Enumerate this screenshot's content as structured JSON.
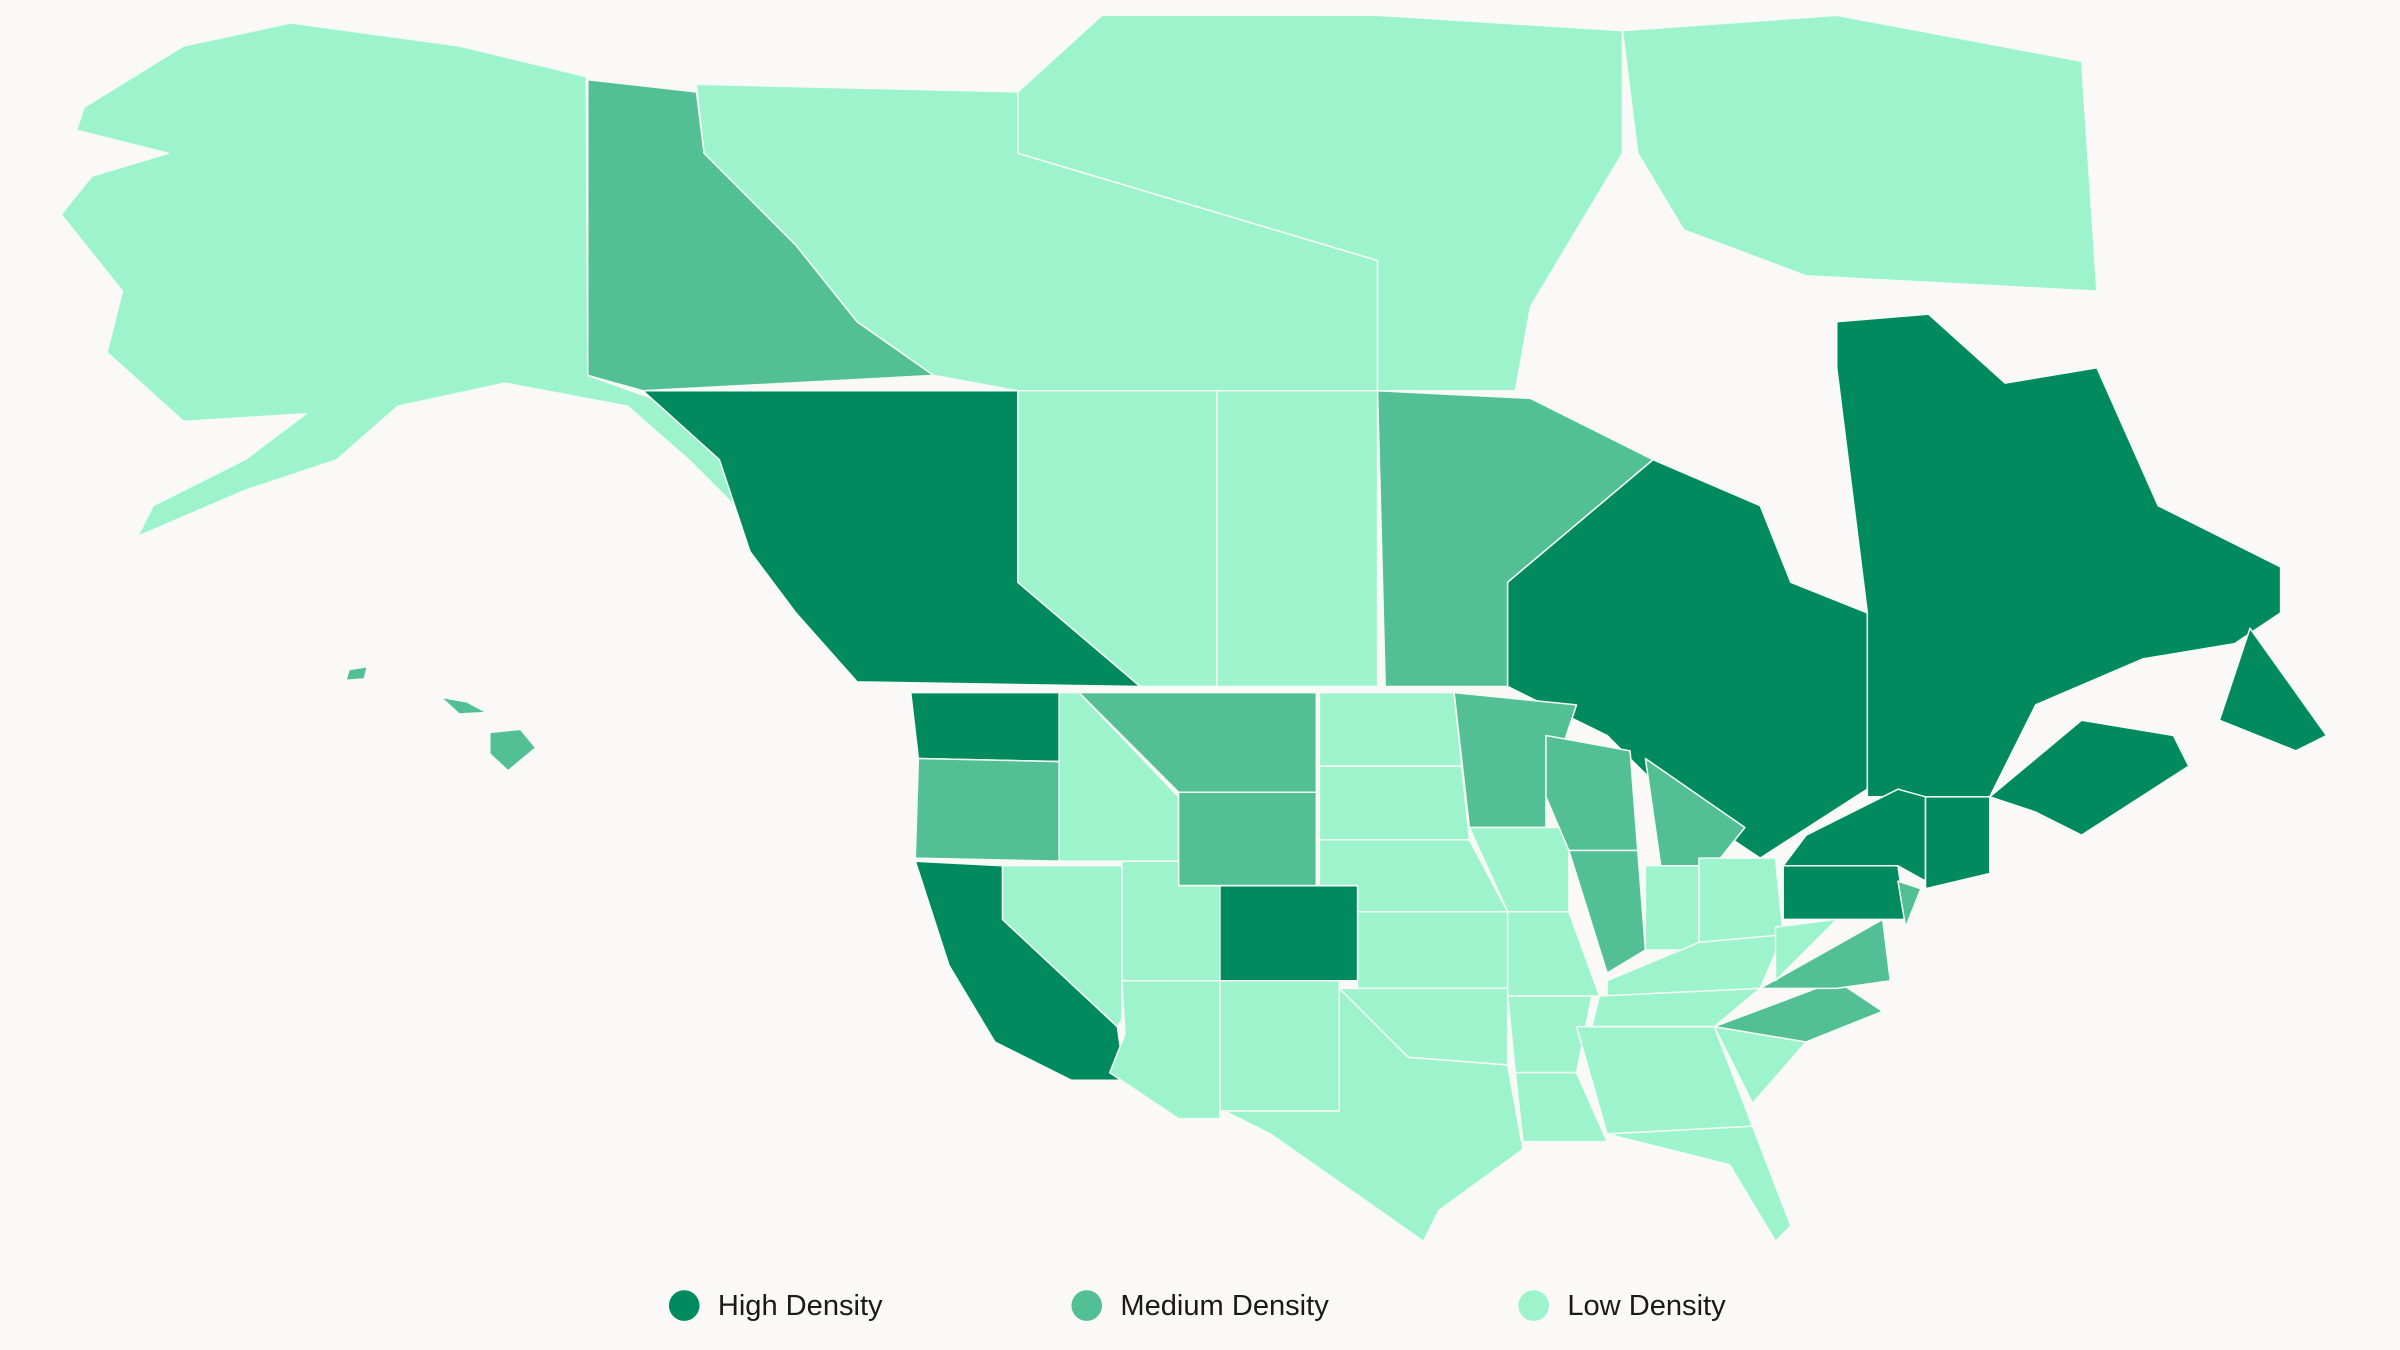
{
  "legend": {
    "items": [
      {
        "name": "High Density",
        "color": "#008a5e"
      },
      {
        "name": "Medium Density",
        "color": "#52bf95"
      },
      {
        "name": "Low Density",
        "color": "#9df3cc"
      }
    ]
  }
}
